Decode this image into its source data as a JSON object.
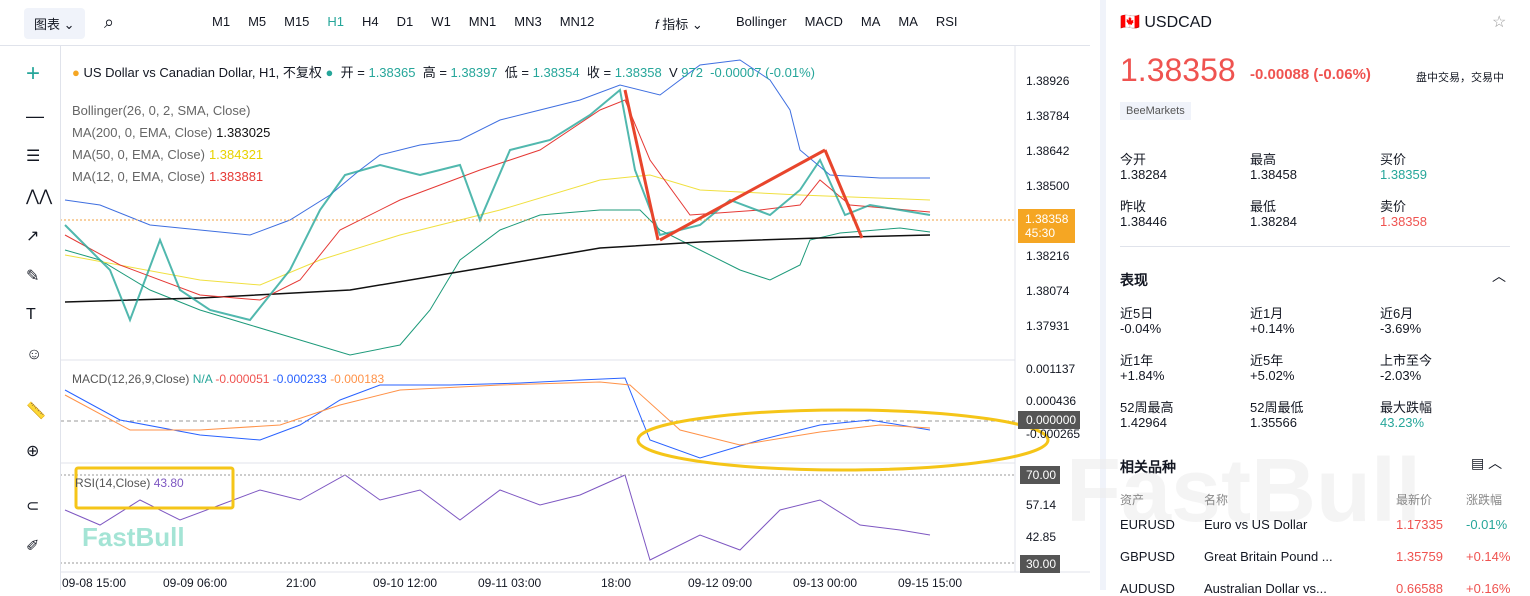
{
  "toolbar": {
    "chart_label": "图表",
    "timeframes": [
      "M1",
      "M5",
      "M15",
      "H1",
      "H4",
      "D1",
      "W1",
      "MN1",
      "MN3",
      "MN12"
    ],
    "active_timeframe": "H1",
    "indicators_label": "指标",
    "indicators": [
      "Bollinger",
      "MACD",
      "MA",
      "MA",
      "RSI"
    ]
  },
  "legend": {
    "title": "US Dollar vs Canadian Dollar, H1, 不复权",
    "open_label": "开 =",
    "open": "1.38365",
    "high_label": "高 =",
    "high": "1.38397",
    "low_label": "低 =",
    "low": "1.38354",
    "close_label": "收 =",
    "close": "1.38358",
    "volume_label": "V",
    "volume": "972",
    "change": "-0.00007 (-0.01%)"
  },
  "studies": [
    {
      "name": "Bollinger(26, 0, 2, SMA, Close)"
    },
    {
      "name": "MA(200, 0, EMA, Close)",
      "value": "1.383025",
      "color": "#111111"
    },
    {
      "name": "MA(50, 0, EMA, Close)",
      "value": "1.384321",
      "color": "#e8d200"
    },
    {
      "name": "MA(12, 0, EMA, Close)",
      "value": "1.383881",
      "color": "#e53935"
    }
  ],
  "price_axis": [
    "1.38926",
    "1.38784",
    "1.38642",
    "1.38500",
    "1.38216",
    "1.38074",
    "1.37931"
  ],
  "price_badge": {
    "price": "1.38358",
    "countdown": "45:30"
  },
  "macd": {
    "label": "MACD(12,26,9,Close)",
    "values": [
      "N/A",
      "-0.000051",
      "-0.000233",
      "-0.000183"
    ],
    "axis": [
      "0.001137",
      "0.000436",
      "0.000000",
      "-0.000265"
    ]
  },
  "rsi": {
    "label": "RSI(14,Close)",
    "value": "43.80",
    "axis": [
      "70.00",
      "57.14",
      "42.85",
      "30.00"
    ]
  },
  "time_axis": [
    "09-08 15:00",
    "09-09 06:00",
    "21:00",
    "09-10 12:00",
    "09-11 03:00",
    "18:00",
    "09-12 09:00",
    "09-13 00:00",
    "09-15 15:00"
  ],
  "watermark": "FastBull",
  "quote": {
    "symbol": "USDCAD",
    "price": "1.38358",
    "change": "-0.00088",
    "change_pct": "(-0.06%)",
    "status": "盘中交易，交易中",
    "broker": "BeeMarkets",
    "stats": [
      [
        "今开",
        "1.38284"
      ],
      [
        "最高",
        "1.38458"
      ],
      [
        "买价",
        "1.38359"
      ],
      [
        "昨收",
        "1.38446"
      ],
      [
        "最低",
        "1.38284"
      ],
      [
        "卖价",
        "1.38358"
      ]
    ]
  },
  "performance": {
    "title": "表现",
    "items": [
      [
        "近5日",
        "-0.04%"
      ],
      [
        "近1月",
        "+0.14%"
      ],
      [
        "近6月",
        "-3.69%"
      ],
      [
        "近1年",
        "+1.84%"
      ],
      [
        "近5年",
        "+5.02%"
      ],
      [
        "上市至今",
        "-2.03%"
      ],
      [
        "52周最高",
        "1.42964"
      ],
      [
        "52周最低",
        "1.35566"
      ],
      [
        "最大跌幅",
        "43.23%"
      ]
    ]
  },
  "related": {
    "title": "相关品种",
    "headers": [
      "资产",
      "名称",
      "最新价",
      "涨跌幅"
    ],
    "rows": [
      [
        "EURUSD",
        "Euro vs US Dollar",
        "1.17335",
        "-0.01%"
      ],
      [
        "GBPUSD",
        "Great Britain Pound ...",
        "1.35759",
        "+0.14%"
      ],
      [
        "AUDUSD",
        "Australian Dollar vs...",
        "0.66588",
        "+0.16%"
      ]
    ]
  }
}
